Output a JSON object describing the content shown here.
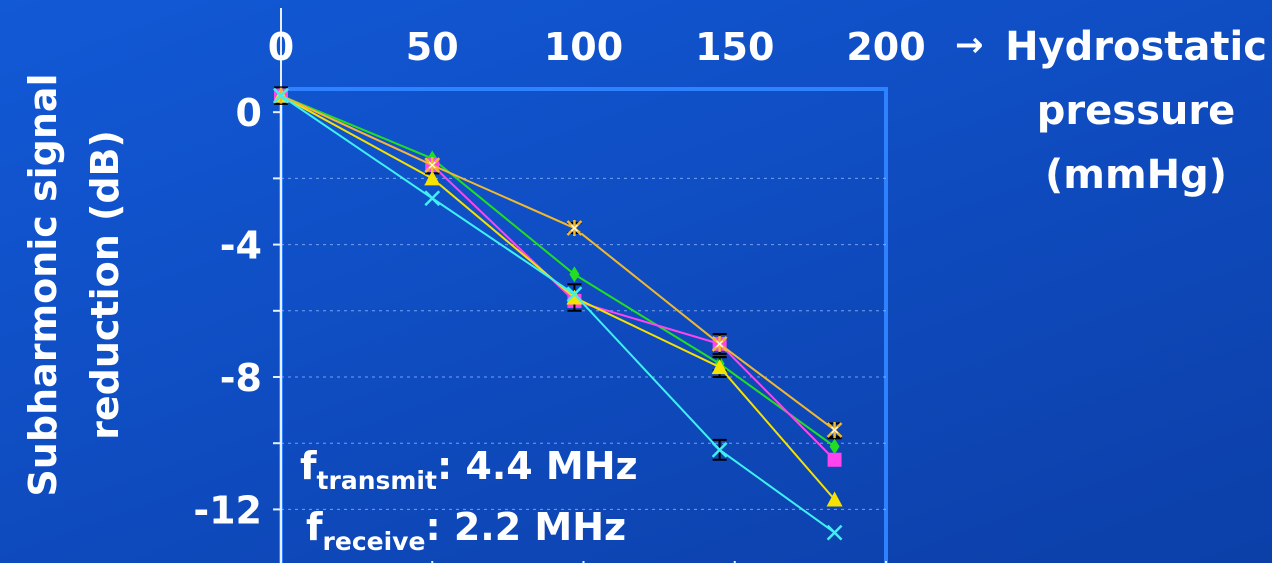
{
  "chart_data": {
    "type": "line",
    "xlabel": "Hydrostatic pressure (mmHg)",
    "xlabel_lines": [
      "Hydrostatic",
      "pressure",
      "(mmHg)"
    ],
    "ylabel": "Subharmonic signal reduction (dB)",
    "ylabel_lines": [
      "Subharmonic signal",
      "reduction (dB)"
    ],
    "x_ticks": [
      "0",
      "50",
      "100",
      "150",
      "200"
    ],
    "y_ticks": [
      "0",
      "-4",
      "-8",
      "-12"
    ],
    "x_tick_values": [
      0,
      50,
      100,
      150,
      200
    ],
    "y_tick_values": [
      0,
      -4,
      -8,
      -12
    ],
    "xlim": [
      0,
      200
    ],
    "ylim": [
      -13.8,
      0.7
    ],
    "x_axis_position": "top",
    "grid": "horizontal dashed",
    "legend": "none",
    "annotations": [
      {
        "symbol": "f",
        "sub": "transmit",
        "text": ": 4.4 MHz"
      },
      {
        "symbol": "f",
        "sub": "receive",
        "text": ": 2.2 MHz"
      }
    ],
    "series": [
      {
        "marker": "diamond",
        "color": "#22dd22",
        "x": [
          0,
          50,
          97,
          145,
          183
        ],
        "y": [
          0.5,
          -1.4,
          -4.9,
          -7.6,
          -10.1
        ],
        "err": [
          0,
          0,
          0,
          0.2,
          0.25
        ]
      },
      {
        "marker": "square",
        "color": "#ff44ee",
        "x": [
          0,
          50,
          97,
          145,
          183
        ],
        "y": [
          0.5,
          -1.6,
          -5.7,
          -7.0,
          -10.5
        ],
        "err": [
          0,
          0,
          0,
          0,
          0
        ]
      },
      {
        "marker": "triangle",
        "color": "#f5e200",
        "x": [
          0,
          50,
          97,
          145,
          183
        ],
        "y": [
          0.5,
          -2.0,
          -5.6,
          -7.7,
          -11.7
        ],
        "err": [
          0.25,
          0.15,
          0.4,
          0.3,
          0
        ]
      },
      {
        "marker": "star",
        "color": "#f0b830",
        "x": [
          0,
          50,
          97,
          145,
          183
        ],
        "y": [
          0.5,
          -1.6,
          -3.5,
          -7.0,
          -9.6
        ],
        "err": [
          0,
          0,
          0.15,
          0.3,
          0.2
        ]
      },
      {
        "marker": "x",
        "color": "#3ff0f0",
        "x": [
          0,
          50,
          97,
          145,
          183
        ],
        "y": [
          0.5,
          -2.6,
          -5.5,
          -10.2,
          -12.7
        ],
        "err": [
          0,
          0,
          0,
          0.3,
          0
        ]
      }
    ]
  }
}
